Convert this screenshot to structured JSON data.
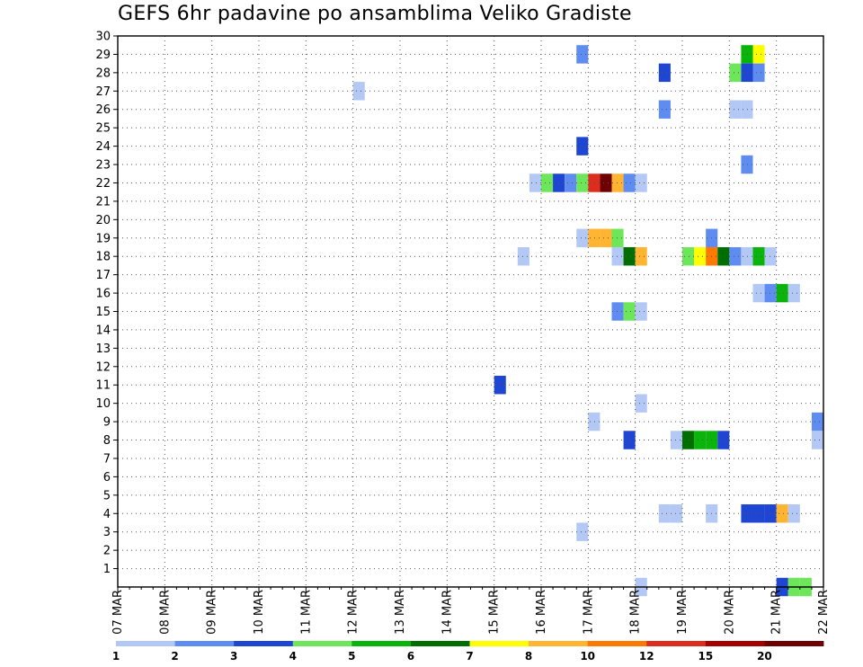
{
  "chart_data": {
    "type": "heatmap",
    "title": "GEFS 6hr padavine po ansamblima Veliko Gradiste",
    "xlabel": "",
    "ylabel": "",
    "x_ticks": [
      "07 MAR",
      "08 MAR",
      "09 MAR",
      "10 MAR",
      "11 MAR",
      "12 MAR",
      "13 MAR",
      "14 MAR",
      "15 MAR",
      "16 MAR",
      "17 MAR",
      "18 MAR",
      "19 MAR",
      "20 MAR",
      "21 MAR",
      "22 MAR"
    ],
    "x_range_steps": [
      0,
      60
    ],
    "y_ticks": [
      "1",
      "2",
      "3",
      "4",
      "5",
      "6",
      "7",
      "8",
      "9",
      "10",
      "11",
      "12",
      "13",
      "14",
      "15",
      "16",
      "17",
      "18",
      "19",
      "20",
      "21",
      "22",
      "23",
      "24",
      "25",
      "26",
      "27",
      "28",
      "29",
      "30"
    ],
    "y_range": [
      0,
      30
    ],
    "steps_per_day": 4,
    "grid": true,
    "color_scale": {
      "labels": [
        "1",
        "2",
        "3",
        "4",
        "5",
        "6",
        "7",
        "8",
        "10",
        "12",
        "15",
        "20"
      ],
      "colors": [
        "#b4c8f5",
        "#5f8cf0",
        "#1e46d2",
        "#6ee65a",
        "#0ab40a",
        "#006e00",
        "#ffff00",
        "#ffb432",
        "#ff7800",
        "#dc2d1e",
        "#a50000",
        "#6e0000"
      ]
    },
    "cells": [
      [
        39,
        30,
        1
      ],
      [
        53,
        30,
        4
      ],
      [
        54,
        30,
        6
      ],
      [
        54,
        29,
        1
      ],
      [
        53,
        29,
        2
      ],
      [
        52,
        29,
        3
      ],
      [
        46,
        29,
        2
      ],
      [
        20,
        28,
        0
      ],
      [
        52,
        27,
        0
      ],
      [
        53,
        27,
        0
      ],
      [
        46,
        27,
        1
      ],
      [
        39,
        25,
        2
      ],
      [
        53,
        24,
        1
      ],
      [
        35,
        23,
        0
      ],
      [
        36,
        23,
        3
      ],
      [
        37,
        23,
        2
      ],
      [
        38,
        23,
        1
      ],
      [
        39,
        23,
        3
      ],
      [
        40,
        23,
        9
      ],
      [
        41,
        23,
        11
      ],
      [
        42,
        23,
        7
      ],
      [
        43,
        23,
        1
      ],
      [
        44,
        23,
        0
      ],
      [
        39,
        20,
        0
      ],
      [
        40,
        20,
        7
      ],
      [
        41,
        20,
        7
      ],
      [
        42,
        20,
        3
      ],
      [
        50,
        20,
        1
      ],
      [
        34,
        19,
        0
      ],
      [
        42,
        19,
        0
      ],
      [
        43,
        19,
        5
      ],
      [
        44,
        19,
        7
      ],
      [
        48,
        19,
        3
      ],
      [
        49,
        19,
        6
      ],
      [
        50,
        19,
        8
      ],
      [
        51,
        19,
        5
      ],
      [
        52,
        19,
        1
      ],
      [
        53,
        19,
        0
      ],
      [
        54,
        19,
        4
      ],
      [
        55,
        19,
        0
      ],
      [
        54,
        17,
        0
      ],
      [
        55,
        17,
        1
      ],
      [
        56,
        17,
        4
      ],
      [
        57,
        17,
        0
      ],
      [
        42,
        16,
        1
      ],
      [
        43,
        16,
        3
      ],
      [
        44,
        16,
        0
      ],
      [
        32,
        12,
        2
      ],
      [
        44,
        11,
        0
      ],
      [
        40,
        10,
        0
      ],
      [
        59,
        10,
        1
      ],
      [
        43,
        9,
        2
      ],
      [
        47,
        9,
        0
      ],
      [
        48,
        9,
        5
      ],
      [
        49,
        9,
        4
      ],
      [
        50,
        9,
        4
      ],
      [
        51,
        9,
        2
      ],
      [
        59,
        9,
        0
      ],
      [
        46,
        5,
        0
      ],
      [
        47,
        5,
        0
      ],
      [
        50,
        5,
        0
      ],
      [
        53,
        5,
        2
      ],
      [
        54,
        5,
        2
      ],
      [
        55,
        5,
        2
      ],
      [
        56,
        5,
        7
      ],
      [
        57,
        5,
        0
      ],
      [
        39,
        4,
        0
      ],
      [
        44,
        1,
        0
      ],
      [
        56,
        1,
        2
      ],
      [
        57,
        1,
        3
      ],
      [
        58,
        1,
        3
      ]
    ]
  }
}
